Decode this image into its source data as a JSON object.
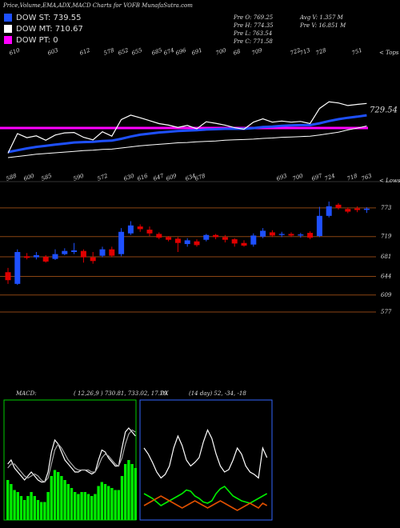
{
  "header": {
    "title": "Price,Volume,EMA,ADX,MACD Charts for VOFB MunafaSutra.com",
    "legend": [
      {
        "label": "DOW ST: 739.55",
        "color": "#1e50ff"
      },
      {
        "label": "DOW MT: 710.67",
        "color": "#ffffff"
      },
      {
        "label": "DOW PT: 0",
        "color": "#ff00ff"
      }
    ],
    "stats": [
      "Pre  O: 769.25",
      "Pre  H: 774.35",
      "Pre  L: 763.54",
      "Pre  C: 771.58",
      "Avg V: 1.357 M",
      "Pre  V: 16.851 M"
    ]
  },
  "chart_data": [
    {
      "type": "candlestick",
      "top_marker": "< Tops",
      "low_marker": "< Lows",
      "tops": [
        610,
        603,
        612,
        578,
        652,
        655,
        685,
        674,
        696,
        691,
        700,
        68,
        709,
        722,
        713,
        728,
        751
      ],
      "lows": [
        588,
        600,
        585,
        590,
        572,
        630,
        616,
        647,
        609,
        634,
        678,
        693,
        700,
        697,
        724,
        718,
        763
      ],
      "ema_label": "729.54",
      "open": [
        652,
        630,
        682,
        680,
        681,
        677,
        686,
        690,
        692,
        680,
        683,
        695,
        686,
        725,
        738,
        732,
        724,
        718,
        715,
        705,
        710,
        713,
        722,
        718,
        714,
        707,
        704,
        719,
        727,
        722,
        724,
        721,
        726,
        720,
        758,
        779,
        771,
        772,
        769.25
      ],
      "high": [
        660,
        695,
        688,
        690,
        684,
        695,
        697,
        707,
        695,
        690,
        700,
        700,
        735,
        748,
        742,
        738,
        727,
        720,
        718,
        716,
        714,
        724,
        724,
        722,
        716,
        712,
        725,
        735,
        731,
        728,
        727,
        726,
        729,
        775,
        785,
        782,
        774,
        776,
        774.35
      ],
      "low": [
        630,
        628,
        676,
        676,
        670,
        675,
        684,
        686,
        670,
        668,
        680,
        680,
        682,
        722,
        728,
        720,
        714,
        710,
        690,
        700,
        700,
        710,
        714,
        708,
        700,
        700,
        700,
        716,
        718,
        718,
        718,
        717,
        714,
        718,
        755,
        770,
        763,
        765,
        763.54
      ],
      "close": [
        637,
        690,
        679,
        684,
        672,
        686,
        692,
        693,
        680,
        673,
        695,
        683,
        728,
        740,
        733,
        725,
        717,
        713,
        707,
        712,
        703,
        722,
        718,
        713,
        706,
        702,
        721,
        730,
        721,
        724,
        721,
        723,
        717,
        758,
        776,
        773,
        766,
        769,
        771.58
      ],
      "up_color": "#1e50ff",
      "down_color": "#e00000",
      "ylim": [
        562,
        818
      ],
      "yticks": [
        773,
        719,
        681,
        644,
        609,
        577
      ],
      "ema_ylim": [
        586,
        911
      ],
      "series": [
        {
          "name": "DOW ST",
          "color": "#1e50ff",
          "values": [
            640,
            645,
            650,
            654,
            657,
            660,
            663,
            666,
            667,
            668,
            670,
            671,
            676,
            682,
            687,
            690,
            693,
            695,
            697,
            698,
            699,
            701,
            702,
            703,
            703,
            703,
            705,
            708,
            709,
            711,
            712,
            713,
            713,
            718,
            724,
            729,
            733,
            736,
            739.55
          ]
        },
        {
          "name": "DOW MT",
          "color": "#ffffff",
          "values": [
            625,
            628,
            631,
            634,
            636,
            638,
            640,
            642,
            644,
            645,
            647,
            648,
            651,
            654,
            657,
            659,
            661,
            663,
            665,
            666,
            668,
            669,
            670,
            672,
            673,
            674,
            675,
            677,
            678,
            680,
            681,
            682,
            683,
            686,
            690,
            694,
            700,
            705,
            710.67
          ]
        }
      ]
    },
    {
      "type": "macd",
      "label": "MACD:",
      "params": "( 12,26,9 ) 730.81, 733.02, 17.79",
      "ylim": [
        0,
        60
      ],
      "color": "#00ee00",
      "values": [
        20,
        18,
        15,
        14,
        12,
        10,
        12,
        14,
        12,
        10,
        9,
        9,
        14,
        22,
        25,
        24,
        22,
        20,
        18,
        16,
        14,
        13,
        14,
        14,
        13,
        12,
        13,
        17,
        19,
        18,
        17,
        16,
        15,
        15,
        22,
        28,
        30,
        28,
        26
      ],
      "series": [
        {
          "color": "#ffffff",
          "values": [
            28,
            30,
            26,
            24,
            22,
            20,
            22,
            24,
            22,
            20,
            19,
            19,
            24,
            34,
            40,
            38,
            34,
            30,
            28,
            26,
            24,
            24,
            25,
            25,
            24,
            23,
            24,
            30,
            35,
            34,
            31,
            29,
            27,
            27,
            36,
            44,
            46,
            44,
            42
          ]
        },
        {
          "color": "#aaaaaa",
          "values": [
            26,
            28,
            28,
            26,
            24,
            22,
            21,
            22,
            23,
            22,
            20,
            19,
            21,
            28,
            35,
            38,
            36,
            33,
            30,
            28,
            26,
            25,
            25,
            25,
            25,
            24,
            24,
            27,
            31,
            33,
            32,
            30,
            28,
            27,
            31,
            38,
            43,
            45,
            44
          ]
        }
      ]
    },
    {
      "type": "adx",
      "label": "DX",
      "params": "(14 day) 52, -34, -18",
      "ylim": [
        0,
        100
      ],
      "series": [
        {
          "color": "#ffffff",
          "values": [
            60,
            55,
            48,
            40,
            35,
            38,
            45,
            60,
            70,
            62,
            50,
            45,
            48,
            52,
            65,
            75,
            68,
            55,
            45,
            40,
            42,
            50,
            60,
            55,
            45,
            40,
            38,
            35,
            60,
            52
          ]
        },
        {
          "color": "#00ee00",
          "values": [
            22,
            20,
            18,
            15,
            12,
            14,
            16,
            18,
            20,
            22,
            25,
            24,
            20,
            18,
            15,
            14,
            16,
            22,
            26,
            28,
            24,
            20,
            18,
            16,
            15,
            14,
            16,
            18,
            20,
            22
          ]
        },
        {
          "color": "#e05000",
          "values": [
            12,
            14,
            16,
            18,
            20,
            18,
            16,
            14,
            12,
            10,
            12,
            14,
            16,
            14,
            12,
            10,
            12,
            14,
            16,
            14,
            12,
            10,
            8,
            10,
            12,
            14,
            12,
            10,
            14,
            12
          ]
        }
      ]
    }
  ]
}
